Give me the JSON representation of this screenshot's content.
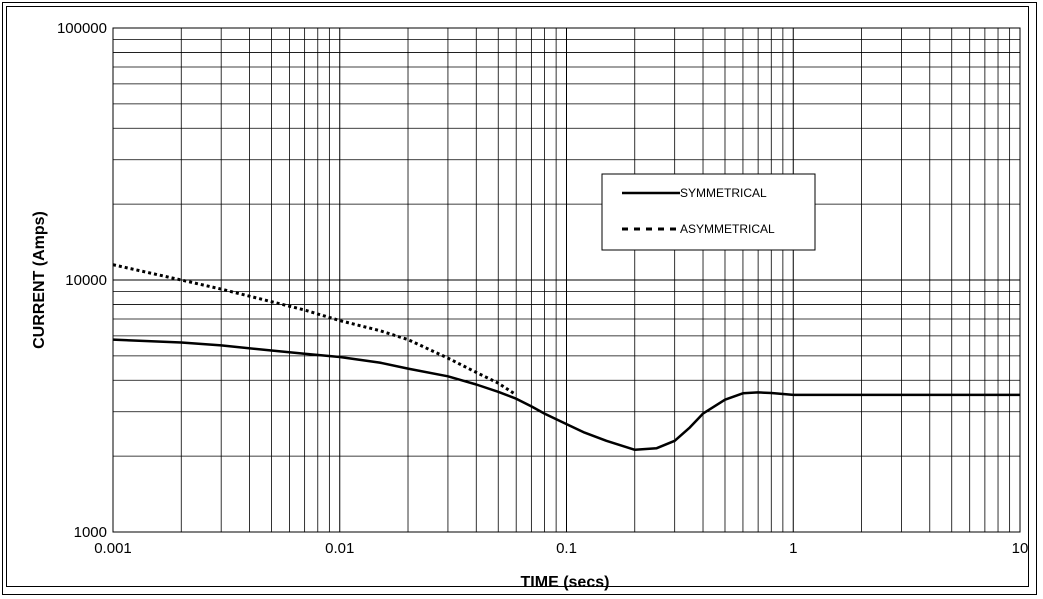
{
  "chart_data": {
    "type": "line",
    "xlabel": "TIME (secs)",
    "ylabel": "CURRENT (Amps)",
    "x_scale": "log",
    "y_scale": "log",
    "xlim": [
      0.001,
      10
    ],
    "ylim": [
      1000,
      100000
    ],
    "x_ticks": [
      {
        "value": 0.001,
        "label": "0.001"
      },
      {
        "value": 0.01,
        "label": "0.01"
      },
      {
        "value": 0.1,
        "label": "0.1"
      },
      {
        "value": 1,
        "label": "1"
      },
      {
        "value": 10,
        "label": "10"
      }
    ],
    "y_ticks": [
      {
        "value": 1000,
        "label": "1000"
      },
      {
        "value": 10000,
        "label": "10000"
      },
      {
        "value": 100000,
        "label": "100000"
      }
    ],
    "grid": true,
    "legend_position": "upper-right",
    "series": [
      {
        "name": "SYMMETRICAL",
        "color": "#000000",
        "style": "solid",
        "x": [
          0.001,
          0.002,
          0.003,
          0.005,
          0.007,
          0.01,
          0.015,
          0.02,
          0.03,
          0.04,
          0.05,
          0.06,
          0.07,
          0.08,
          0.1,
          0.12,
          0.15,
          0.2,
          0.25,
          0.3,
          0.35,
          0.4,
          0.5,
          0.6,
          0.7,
          0.8,
          1,
          1.5,
          2,
          3,
          5,
          10
        ],
        "y": [
          5800,
          5650,
          5500,
          5250,
          5100,
          4950,
          4700,
          4450,
          4150,
          3850,
          3600,
          3380,
          3150,
          2950,
          2680,
          2480,
          2300,
          2120,
          2150,
          2300,
          2600,
          2950,
          3350,
          3550,
          3580,
          3560,
          3500,
          3500,
          3500,
          3500,
          3500,
          3500
        ]
      },
      {
        "name": "ASYMMETRICAL",
        "color": "#000000",
        "style": "dotted",
        "x": [
          0.001,
          0.002,
          0.003,
          0.005,
          0.007,
          0.01,
          0.015,
          0.02,
          0.03,
          0.04,
          0.05,
          0.06
        ],
        "y": [
          11500,
          10000,
          9200,
          8200,
          7600,
          6900,
          6300,
          5800,
          4900,
          4300,
          3900,
          3500
        ]
      }
    ]
  }
}
